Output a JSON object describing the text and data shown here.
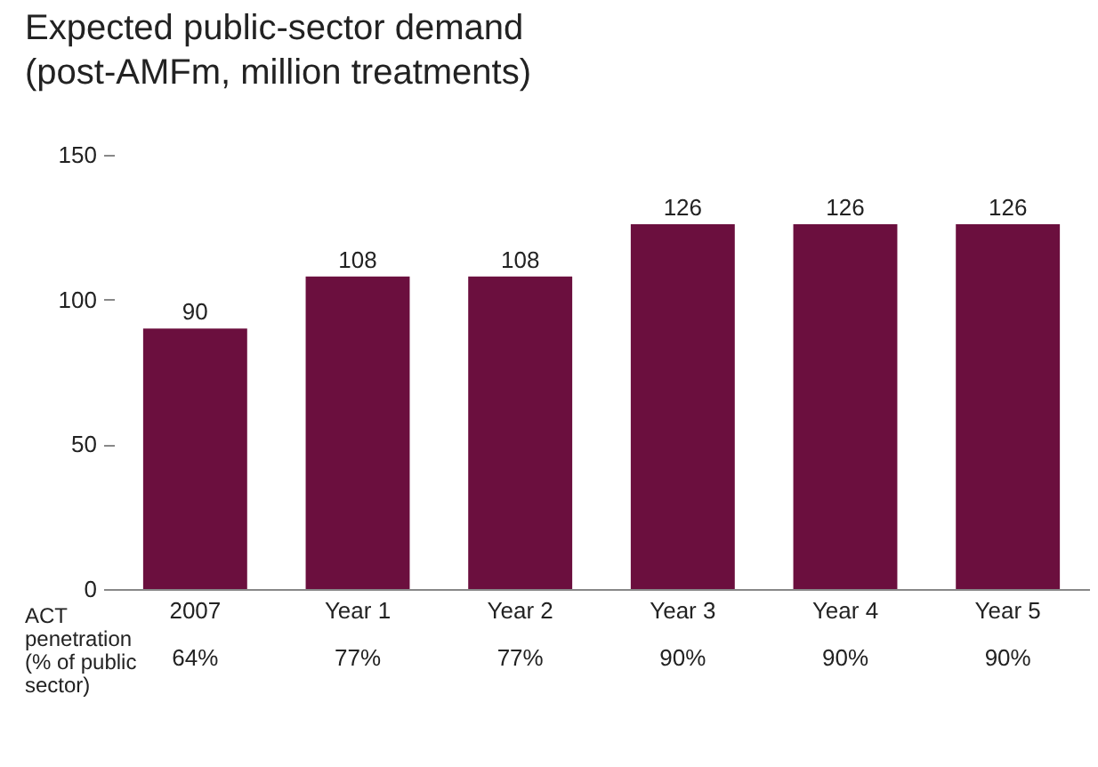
{
  "chart_data": {
    "type": "bar",
    "title": "Expected public-sector demand\n(post-AMFm, million treatments)",
    "categories": [
      "2007",
      "Year 1",
      "Year 2",
      "Year 3",
      "Year 4",
      "Year 5"
    ],
    "values": [
      90,
      108,
      108,
      126,
      126,
      126
    ],
    "color": "#6b0f3e",
    "ylim": [
      0,
      150
    ],
    "yticks": [
      0,
      50,
      100,
      150
    ],
    "grid": false,
    "data_labels": true,
    "annotations": [
      "ACT\npenetration\n(% of public\nsector)",
      "64%",
      "77%",
      "77%",
      "90%",
      "90%",
      "90%"
    ]
  }
}
